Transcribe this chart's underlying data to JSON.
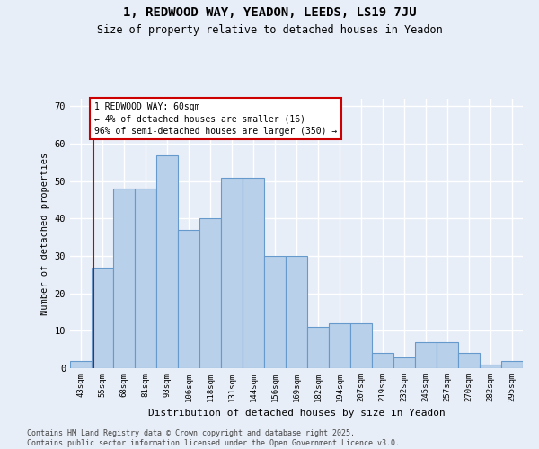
{
  "title1": "1, REDWOOD WAY, YEADON, LEEDS, LS19 7JU",
  "title2": "Size of property relative to detached houses in Yeadon",
  "xlabel": "Distribution of detached houses by size in Yeadon",
  "ylabel": "Number of detached properties",
  "categories": [
    "43sqm",
    "55sqm",
    "68sqm",
    "81sqm",
    "93sqm",
    "106sqm",
    "118sqm",
    "131sqm",
    "144sqm",
    "156sqm",
    "169sqm",
    "182sqm",
    "194sqm",
    "207sqm",
    "219sqm",
    "232sqm",
    "245sqm",
    "257sqm",
    "270sqm",
    "282sqm",
    "295sqm"
  ],
  "values": [
    2,
    27,
    48,
    48,
    57,
    37,
    40,
    51,
    51,
    30,
    30,
    11,
    12,
    12,
    4,
    3,
    7,
    7,
    4,
    1,
    2
  ],
  "bar_color": "#b8d0ea",
  "bar_edge_color": "#6699cc",
  "background_color": "#e8eef8",
  "grid_color": "#ffffff",
  "annotation_text": "1 REDWOOD WAY: 60sqm\n← 4% of detached houses are smaller (16)\n96% of semi-detached houses are larger (350) →",
  "annotation_box_color": "#ffffff",
  "annotation_box_edge": "#cc0000",
  "ref_line_color": "#cc0000",
  "ref_line_x": 0.57,
  "ylim": [
    0,
    72
  ],
  "yticks": [
    0,
    10,
    20,
    30,
    40,
    50,
    60,
    70
  ],
  "footer": "Contains HM Land Registry data © Crown copyright and database right 2025.\nContains public sector information licensed under the Open Government Licence v3.0."
}
